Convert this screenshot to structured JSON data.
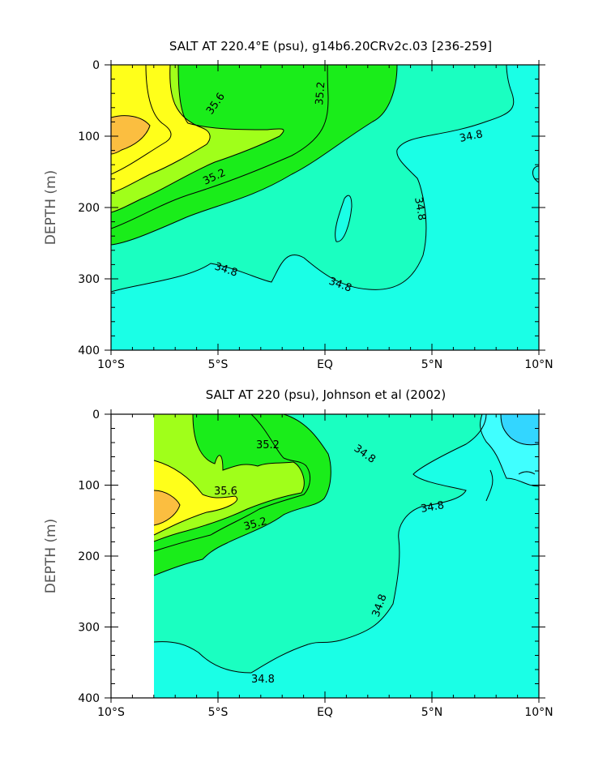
{
  "chart_data": [
    {
      "type": "contour",
      "title": "SALT AT 220.4°E (psu), g14b6.20CRv2c.03 [236-259]",
      "ylabel": "DEPTH (m)",
      "xlabel": "",
      "x_range": [
        -10,
        10
      ],
      "y_range": [
        0,
        400
      ],
      "y_inverted": true,
      "x_ticks": [
        -10,
        -5,
        0,
        5,
        10
      ],
      "x_tick_labels": [
        "10°S",
        "5°S",
        "EQ",
        "5°N",
        "10°N"
      ],
      "y_ticks": [
        0,
        100,
        200,
        300,
        400
      ],
      "y_tick_labels": [
        "0",
        "100",
        "200",
        "300",
        "400"
      ],
      "contour_interval": 0.2,
      "contour_labels": [
        {
          "x": -5.1,
          "y": 125,
          "text": "35.6"
        },
        {
          "x": 0.0,
          "y": 65,
          "text": "35.2"
        },
        {
          "x": -5.2,
          "y": 178,
          "text": "35.2"
        },
        {
          "x": 4.7,
          "y": 100,
          "text": "34.8"
        },
        {
          "x": 4.7,
          "y": 210,
          "text": "34.8"
        },
        {
          "x": -4.5,
          "y": 292,
          "text": "34.8"
        },
        {
          "x": 0.9,
          "y": 310,
          "text": "34.8"
        }
      ]
    },
    {
      "type": "contour",
      "title": "SALT AT 220 (psu), Johnson et al (2002)",
      "ylabel": "DEPTH (m)",
      "xlabel": "",
      "x_range": [
        -10,
        10
      ],
      "y_range": [
        0,
        400
      ],
      "y_inverted": true,
      "data_x_start": -8,
      "x_ticks": [
        -10,
        -5,
        0,
        5,
        10
      ],
      "x_tick_labels": [
        "10°S",
        "5°S",
        "EQ",
        "5°N",
        "10°N"
      ],
      "y_ticks": [
        0,
        100,
        200,
        300,
        400
      ],
      "y_tick_labels": [
        "0",
        "100",
        "200",
        "300",
        "400"
      ],
      "contour_interval": 0.2,
      "contour_labels": [
        {
          "x": -2.5,
          "y": 38,
          "text": "35.2"
        },
        {
          "x": -5.5,
          "y": 112,
          "text": "35.6"
        },
        {
          "x": -3.0,
          "y": 145,
          "text": "35.2"
        },
        {
          "x": 1.4,
          "y": 60,
          "text": "34.8"
        },
        {
          "x": 4.8,
          "y": 130,
          "text": "34.8"
        },
        {
          "x": 2.5,
          "y": 280,
          "text": "34.8"
        },
        {
          "x": -2.6,
          "y": 345,
          "text": "34.8"
        }
      ]
    }
  ],
  "colors": {
    "fill_gt_35_8": "#fbbe40",
    "fill_35_6_35_8": "#ffff1a",
    "fill_35_4_35_6": "#a0ff1a",
    "fill_35_2_35_4": "#1aed1a",
    "fill_34_8_35_2": "#1affc1",
    "fill_lt_34_8": "#1affe6",
    "fill_lt_34_6": "#40ffff",
    "fill_lt_34_4": "#33d6ff"
  }
}
